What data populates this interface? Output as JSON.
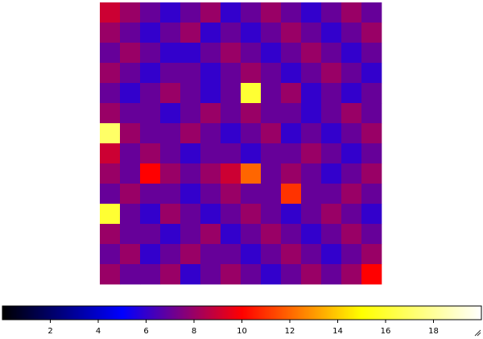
{
  "chart_data": {
    "type": "heatmap",
    "values": [
      [
        9,
        8,
        7,
        6,
        7,
        8,
        6,
        7,
        8,
        7,
        6,
        7,
        8,
        7
      ],
      [
        8,
        7,
        6,
        7,
        8,
        6,
        7,
        6,
        7,
        8,
        7,
        6,
        7,
        8
      ],
      [
        7,
        8,
        7,
        6,
        6,
        7,
        8,
        7,
        6,
        7,
        8,
        7,
        6,
        7
      ],
      [
        8,
        7,
        6,
        7,
        7,
        6,
        7,
        8,
        7,
        6,
        7,
        8,
        7,
        6
      ],
      [
        7,
        6,
        7,
        8,
        7,
        6,
        7,
        16,
        7,
        8,
        6,
        7,
        6,
        7
      ],
      [
        8,
        7,
        7,
        6,
        7,
        8,
        7,
        8,
        7,
        7,
        6,
        7,
        8,
        7
      ],
      [
        17,
        8,
        7,
        7,
        8,
        7,
        6,
        7,
        8,
        6,
        7,
        6,
        7,
        8
      ],
      [
        9,
        7,
        8,
        7,
        6,
        7,
        7,
        6,
        7,
        7,
        8,
        7,
        6,
        7
      ],
      [
        8,
        7,
        10,
        8,
        7,
        8,
        9,
        12,
        7,
        8,
        7,
        6,
        7,
        8
      ],
      [
        7,
        8,
        7,
        7,
        6,
        7,
        8,
        7,
        7,
        11,
        7,
        7,
        8,
        7
      ],
      [
        16,
        7,
        6,
        8,
        7,
        6,
        7,
        8,
        7,
        6,
        7,
        8,
        7,
        6
      ],
      [
        8,
        7,
        7,
        6,
        7,
        8,
        6,
        7,
        8,
        7,
        6,
        7,
        8,
        7
      ],
      [
        7,
        8,
        6,
        7,
        8,
        7,
        7,
        6,
        7,
        8,
        7,
        6,
        7,
        8
      ],
      [
        8,
        7,
        7,
        8,
        6,
        7,
        8,
        7,
        6,
        7,
        8,
        7,
        8,
        10
      ]
    ],
    "zlim": [
      0,
      20
    ],
    "colorbar_ticks": [
      2,
      4,
      6,
      8,
      10,
      12,
      14,
      16,
      18
    ],
    "colormap": [
      "#000000",
      "#0000ff",
      "#ff0000",
      "#ffff00",
      "#ffffff"
    ]
  }
}
